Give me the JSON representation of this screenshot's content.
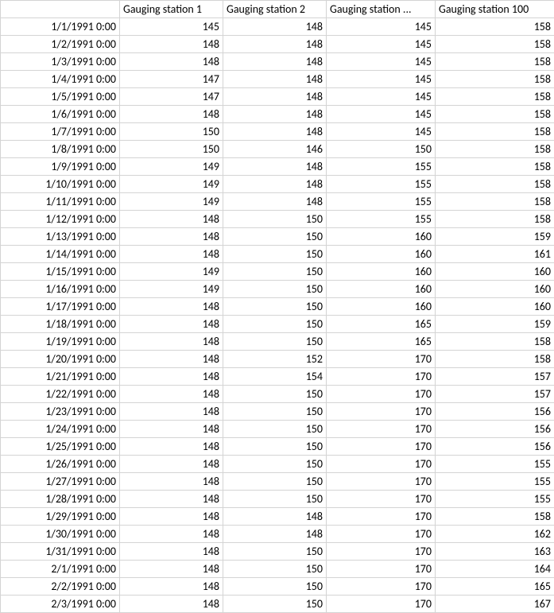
{
  "table": {
    "columns": [
      "",
      "Gauging station 1",
      "Gauging station 2",
      "Gauging station ...",
      "Gauging station 100"
    ],
    "column_align": [
      "right",
      "left",
      "left",
      "left",
      "left"
    ],
    "cell_align": "right",
    "border_color": "#d4d4d4",
    "background_color": "#ffffff",
    "text_color": "#000000",
    "font_family": "Calibri",
    "font_size_pt": 11,
    "rows": [
      [
        "1/1/1991 0:00",
        "145",
        "148",
        "145",
        "158"
      ],
      [
        "1/2/1991 0:00",
        "148",
        "148",
        "145",
        "158"
      ],
      [
        "1/3/1991 0:00",
        "148",
        "148",
        "145",
        "158"
      ],
      [
        "1/4/1991 0:00",
        "147",
        "148",
        "145",
        "158"
      ],
      [
        "1/5/1991 0:00",
        "147",
        "148",
        "145",
        "158"
      ],
      [
        "1/6/1991 0:00",
        "148",
        "148",
        "145",
        "158"
      ],
      [
        "1/7/1991 0:00",
        "150",
        "148",
        "145",
        "158"
      ],
      [
        "1/8/1991 0:00",
        "150",
        "146",
        "150",
        "158"
      ],
      [
        "1/9/1991 0:00",
        "149",
        "148",
        "155",
        "158"
      ],
      [
        "1/10/1991 0:00",
        "149",
        "148",
        "155",
        "158"
      ],
      [
        "1/11/1991 0:00",
        "149",
        "148",
        "155",
        "158"
      ],
      [
        "1/12/1991 0:00",
        "148",
        "150",
        "155",
        "158"
      ],
      [
        "1/13/1991 0:00",
        "148",
        "150",
        "160",
        "159"
      ],
      [
        "1/14/1991 0:00",
        "148",
        "150",
        "160",
        "161"
      ],
      [
        "1/15/1991 0:00",
        "149",
        "150",
        "160",
        "160"
      ],
      [
        "1/16/1991 0:00",
        "149",
        "150",
        "160",
        "160"
      ],
      [
        "1/17/1991 0:00",
        "148",
        "150",
        "160",
        "160"
      ],
      [
        "1/18/1991 0:00",
        "148",
        "150",
        "165",
        "159"
      ],
      [
        "1/19/1991 0:00",
        "148",
        "150",
        "165",
        "158"
      ],
      [
        "1/20/1991 0:00",
        "148",
        "152",
        "170",
        "158"
      ],
      [
        "1/21/1991 0:00",
        "148",
        "154",
        "170",
        "157"
      ],
      [
        "1/22/1991 0:00",
        "148",
        "150",
        "170",
        "157"
      ],
      [
        "1/23/1991 0:00",
        "148",
        "150",
        "170",
        "156"
      ],
      [
        "1/24/1991 0:00",
        "148",
        "150",
        "170",
        "156"
      ],
      [
        "1/25/1991 0:00",
        "148",
        "150",
        "170",
        "156"
      ],
      [
        "1/26/1991 0:00",
        "148",
        "150",
        "170",
        "155"
      ],
      [
        "1/27/1991 0:00",
        "148",
        "150",
        "170",
        "155"
      ],
      [
        "1/28/1991 0:00",
        "148",
        "150",
        "170",
        "155"
      ],
      [
        "1/29/1991 0:00",
        "148",
        "148",
        "170",
        "158"
      ],
      [
        "1/30/1991 0:00",
        "148",
        "148",
        "170",
        "162"
      ],
      [
        "1/31/1991 0:00",
        "148",
        "150",
        "170",
        "163"
      ],
      [
        "2/1/1991 0:00",
        "148",
        "150",
        "170",
        "164"
      ],
      [
        "2/2/1991 0:00",
        "148",
        "150",
        "170",
        "165"
      ],
      [
        "2/3/1991 0:00",
        "148",
        "150",
        "170",
        "167"
      ]
    ]
  }
}
